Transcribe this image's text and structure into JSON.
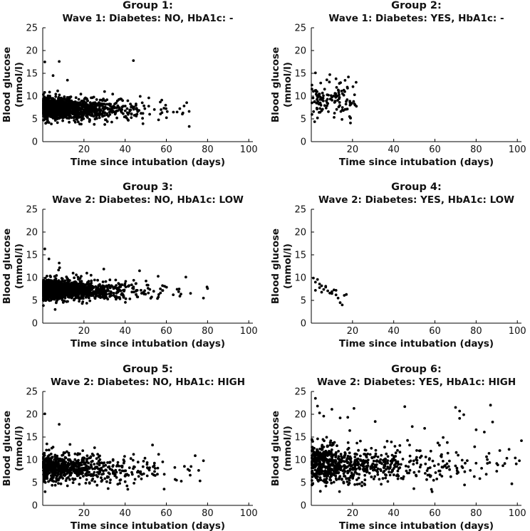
{
  "figure": {
    "axis_color": "#000000",
    "marker_color": "#000000"
  },
  "chart_data": [
    {
      "type": "scatter",
      "title": "Group 1:",
      "subtitle": "Wave 1: Diabetes: NO, HbA1c: -",
      "xlabel": "Time since intubation (days)",
      "ylabel": [
        "Blood glucose",
        "(mmol/l)"
      ],
      "xlim": [
        0,
        102
      ],
      "ylim": [
        0,
        25
      ],
      "xticks": [
        20,
        40,
        60,
        80,
        100
      ],
      "yticks": [
        0,
        5,
        10,
        15,
        20,
        25
      ],
      "density": {
        "count": 1500,
        "x_max": 76,
        "x_decay": 13,
        "y_center": 7.3,
        "y_spread": 1.1,
        "y_center_slope": -0.01,
        "seed": 11,
        "outliers": [
          [
            1,
            17.5
          ],
          [
            8,
            17.6
          ],
          [
            44,
            17.8
          ],
          [
            5,
            14.5
          ],
          [
            12,
            13.5
          ],
          [
            3,
            4.2
          ],
          [
            30,
            11
          ],
          [
            36,
            5.2
          ],
          [
            25,
            3.8
          ]
        ]
      }
    },
    {
      "type": "scatter",
      "title": "Group 2:",
      "subtitle": "Wave 1: Diabetes: YES, HbA1c: -",
      "xlabel": "Time since intubation (days)",
      "ylabel": [
        "Blood glucose",
        "(mmol/l)"
      ],
      "xlim": [
        0,
        102
      ],
      "ylim": [
        0,
        25
      ],
      "xticks": [
        20,
        40,
        60,
        80,
        100
      ],
      "yticks": [
        0,
        5,
        10,
        15,
        20,
        25
      ],
      "density": {
        "count": 120,
        "x_max": 22,
        "x_decay": 0,
        "y_center": 9.2,
        "y_spread": 1.9,
        "y_center_slope": 0,
        "seed": 22,
        "outliers": [
          [
            2,
            15.1
          ],
          [
            9,
            14.7
          ],
          [
            18,
            14.2
          ],
          [
            19,
            4.1
          ],
          [
            3,
            5.2
          ],
          [
            12,
            13.8
          ]
        ]
      }
    },
    {
      "type": "scatter",
      "title": "Group 3:",
      "subtitle": "Wave 2: Diabetes: NO, HbA1c: LOW",
      "xlabel": "Time since intubation (days)",
      "ylabel": [
        "Blood glucose",
        "(mmol/l)"
      ],
      "xlim": [
        0,
        102
      ],
      "ylim": [
        0,
        25
      ],
      "xticks": [
        20,
        40,
        60,
        80,
        100
      ],
      "yticks": [
        0,
        5,
        10,
        15,
        20,
        25
      ],
      "density": {
        "count": 1600,
        "x_max": 80,
        "x_decay": 12,
        "y_center": 7.4,
        "y_spread": 1.0,
        "y_center_slope": -0.008,
        "seed": 33,
        "outliers": [
          [
            1,
            16.3
          ],
          [
            3,
            14.1
          ],
          [
            8,
            13.2
          ],
          [
            47,
            11.5
          ],
          [
            56,
            10.3
          ],
          [
            6,
            3.0
          ],
          [
            80,
            7.6
          ],
          [
            78,
            5.5
          ]
        ]
      }
    },
    {
      "type": "scatter",
      "title": "Group 4:",
      "subtitle": "Wave 2: Diabetes: YES, HbA1c: LOW",
      "xlabel": "Time since intubation (days)",
      "ylabel": [
        "Blood glucose",
        "(mmol/l)"
      ],
      "xlim": [
        0,
        102
      ],
      "ylim": [
        0,
        25
      ],
      "xticks": [
        20,
        40,
        60,
        80,
        100
      ],
      "yticks": [
        0,
        5,
        10,
        15,
        20,
        25
      ],
      "points": [
        [
          1,
          9.9
        ],
        [
          2,
          7.2
        ],
        [
          3,
          9.6
        ],
        [
          4,
          7.8
        ],
        [
          5,
          8.2
        ],
        [
          5,
          6.8
        ],
        [
          6,
          7.4
        ],
        [
          7,
          7.9
        ],
        [
          8,
          7.1
        ],
        [
          9,
          6.6
        ],
        [
          10,
          6.9
        ],
        [
          11,
          7.3
        ],
        [
          12,
          6.2
        ],
        [
          13,
          5.5
        ],
        [
          14,
          4.5
        ],
        [
          15,
          4.0
        ],
        [
          16,
          6.1
        ],
        [
          17,
          6.3
        ],
        [
          4,
          8.6
        ],
        [
          7,
          8.1
        ],
        [
          2,
          9.0
        ],
        [
          10,
          6.5
        ],
        [
          12,
          7.2
        ]
      ]
    },
    {
      "type": "scatter",
      "title": "Group 5:",
      "subtitle": "Wave 2: Diabetes: NO, HbA1c: HIGH",
      "xlabel": "Time since intubation (days)",
      "ylabel": [
        "Blood glucose",
        "(mmol/l)"
      ],
      "xlim": [
        0,
        102
      ],
      "ylim": [
        0,
        25
      ],
      "xticks": [
        20,
        40,
        60,
        80,
        100
      ],
      "yticks": [
        0,
        5,
        10,
        15,
        20,
        25
      ],
      "density": {
        "count": 700,
        "x_max": 78,
        "x_decay": 16,
        "y_center": 8.4,
        "y_spread": 1.5,
        "y_center_slope": -0.015,
        "seed": 55,
        "outliers": [
          [
            1,
            20.1
          ],
          [
            8,
            17.8
          ],
          [
            2,
            13.5
          ],
          [
            5,
            12.8
          ],
          [
            74,
            10.9
          ],
          [
            78,
            9.8
          ],
          [
            40,
            5.2
          ],
          [
            12,
            4.3
          ]
        ]
      }
    },
    {
      "type": "scatter",
      "title": "Group 6:",
      "subtitle": "Wave 2: Diabetes: YES, HbA1c: HIGH",
      "xlabel": "Time since intubation (days)",
      "ylabel": [
        "Blood glucose",
        "(mmol/l)"
      ],
      "xlim": [
        0,
        102
      ],
      "ylim": [
        0,
        25
      ],
      "xticks": [
        20,
        40,
        60,
        80,
        100
      ],
      "yticks": [
        0,
        5,
        10,
        15,
        20,
        25
      ],
      "density": {
        "count": 800,
        "x_max": 102,
        "x_decay": 22,
        "y_center": 8.9,
        "y_spread": 2.0,
        "y_center_slope": -0.005,
        "seed": 66,
        "outliers": [
          [
            2,
            23.5
          ],
          [
            3,
            21.8
          ],
          [
            4,
            20.3
          ],
          [
            6,
            19.6
          ],
          [
            10,
            21.1
          ],
          [
            14,
            19.2
          ],
          [
            31,
            18.4
          ],
          [
            49,
            17.3
          ],
          [
            55,
            16.9
          ],
          [
            64,
            14.9
          ],
          [
            70,
            21.5
          ],
          [
            72,
            20.7
          ],
          [
            74,
            19.9
          ],
          [
            72,
            19.1
          ],
          [
            80,
            16.6
          ],
          [
            84,
            16.1
          ],
          [
            87,
            22.0
          ],
          [
            88,
            18.3
          ],
          [
            102,
            14.2
          ],
          [
            96,
            12.3
          ],
          [
            99,
            10.4
          ],
          [
            66,
            13.8
          ],
          [
            58,
            6.5
          ],
          [
            90,
            9.2
          ],
          [
            93,
            8.7
          ],
          [
            101,
            9.8
          ]
        ]
      }
    }
  ]
}
